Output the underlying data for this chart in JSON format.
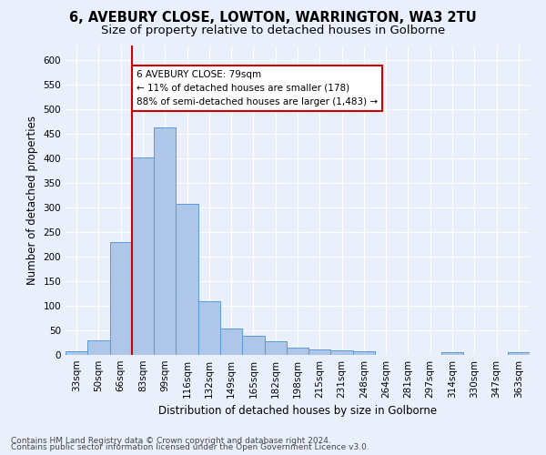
{
  "title_line1": "6, AVEBURY CLOSE, LOWTON, WARRINGTON, WA3 2TU",
  "title_line2": "Size of property relative to detached houses in Golborne",
  "xlabel": "Distribution of detached houses by size in Golborne",
  "ylabel": "Number of detached properties",
  "categories": [
    "33sqm",
    "50sqm",
    "66sqm",
    "83sqm",
    "99sqm",
    "116sqm",
    "132sqm",
    "149sqm",
    "165sqm",
    "182sqm",
    "198sqm",
    "215sqm",
    "231sqm",
    "248sqm",
    "264sqm",
    "281sqm",
    "297sqm",
    "314sqm",
    "330sqm",
    "347sqm",
    "363sqm"
  ],
  "values": [
    7,
    30,
    230,
    403,
    463,
    307,
    110,
    54,
    39,
    27,
    14,
    12,
    10,
    7,
    0,
    0,
    0,
    5,
    0,
    0,
    5
  ],
  "bar_color": "#aec6e8",
  "bar_edge_color": "#5b9bd5",
  "vline_color": "#cc0000",
  "annotation_text": "6 AVEBURY CLOSE: 79sqm\n← 11% of detached houses are smaller (178)\n88% of semi-detached houses are larger (1,483) →",
  "annotation_box_color": "#ffffff",
  "annotation_box_edge": "#cc0000",
  "ylim": [
    0,
    630
  ],
  "yticks": [
    0,
    50,
    100,
    150,
    200,
    250,
    300,
    350,
    400,
    450,
    500,
    550,
    600
  ],
  "bg_color": "#eaf0fb",
  "plot_bg_color": "#eaf0fb",
  "footer1": "Contains HM Land Registry data © Crown copyright and database right 2024.",
  "footer2": "Contains public sector information licensed under the Open Government Licence v3.0.",
  "title_fontsize": 10.5,
  "subtitle_fontsize": 9.5,
  "tick_fontsize": 7.5,
  "label_fontsize": 8.5,
  "footer_fontsize": 6.5
}
